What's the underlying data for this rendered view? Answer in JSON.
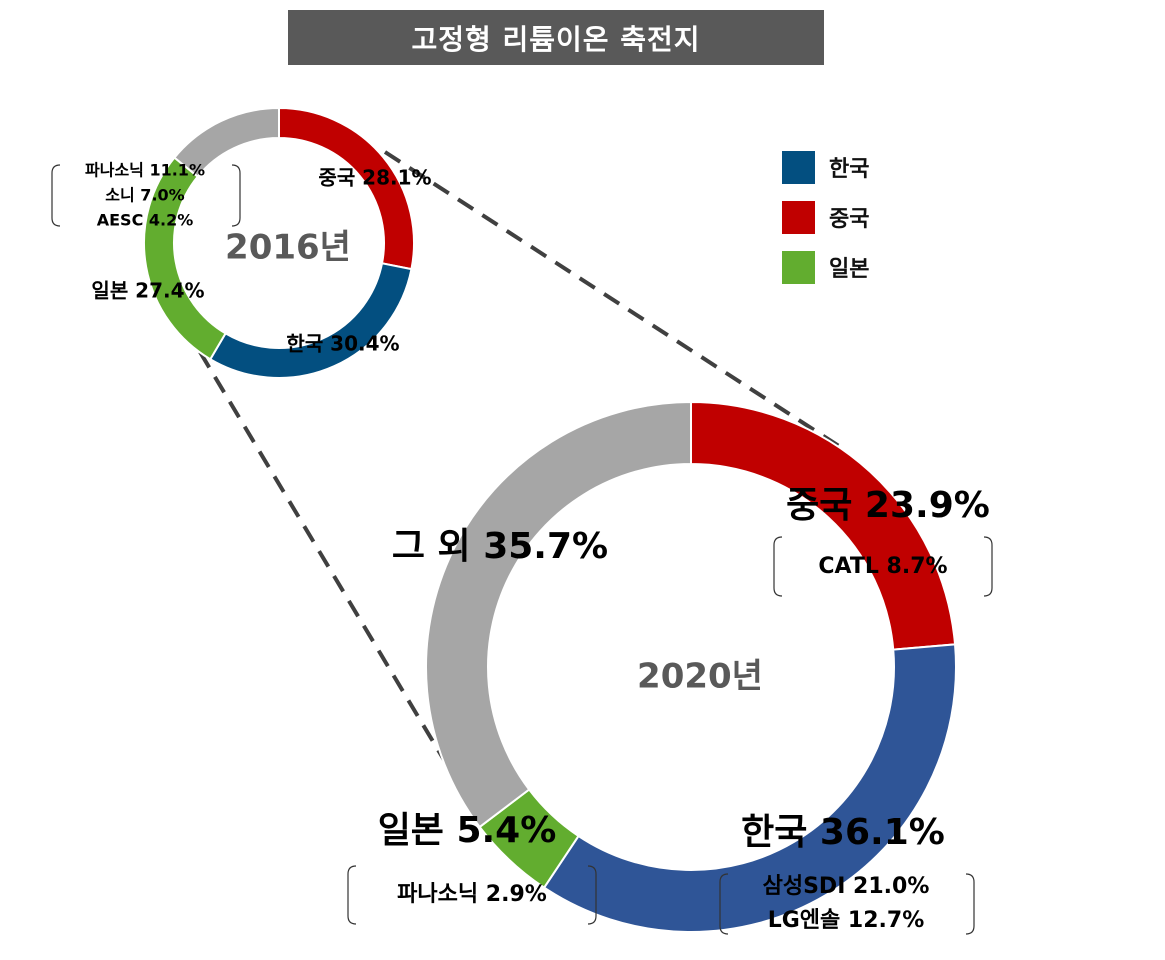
{
  "page": {
    "title": "고정형 리튬이온 축전지"
  },
  "legend": [
    {
      "label": "한국",
      "color": "#034f80"
    },
    {
      "label": "중국",
      "color": "#c00000"
    },
    {
      "label": "일본",
      "color": "#62ad2f"
    }
  ],
  "chart_data": [
    {
      "type": "pie",
      "subtype": "donut",
      "title": "2016년",
      "slices": [
        {
          "label": "중국",
          "value": 28.1,
          "color": "#c00000",
          "text": "중국 28.1%"
        },
        {
          "label": "한국",
          "value": 30.4,
          "color": "#034f80",
          "text": "한국 30.4%"
        },
        {
          "label": "일본",
          "value": 27.4,
          "color": "#62ad2f",
          "text": "일본 27.4%",
          "breakdown": [
            "파나소닉 11.1%",
            "소니 7.0%",
            "AESC 4.2%"
          ]
        },
        {
          "label": "",
          "value": 14.1,
          "color": "#a6a6a6",
          "text": ""
        }
      ]
    },
    {
      "type": "pie",
      "subtype": "donut",
      "title": "2020년",
      "slices": [
        {
          "label": "중국",
          "value": 23.9,
          "color": "#c00000",
          "text": "중국 23.9%",
          "breakdown": [
            "CATL 8.7%"
          ]
        },
        {
          "label": "한국",
          "value": 36.1,
          "color": "#2f5597",
          "text": "한국 36.1%",
          "breakdown": [
            "삼성SDI 21.0%",
            "LG엔솔 12.7%"
          ]
        },
        {
          "label": "일본",
          "value": 5.4,
          "color": "#62ad2f",
          "text": "일본 5.4%",
          "breakdown": [
            "파나소닉 2.9%"
          ]
        },
        {
          "label": "그 외",
          "value": 35.7,
          "color": "#a6a6a6",
          "text": "그 외 35.7%"
        }
      ]
    }
  ]
}
